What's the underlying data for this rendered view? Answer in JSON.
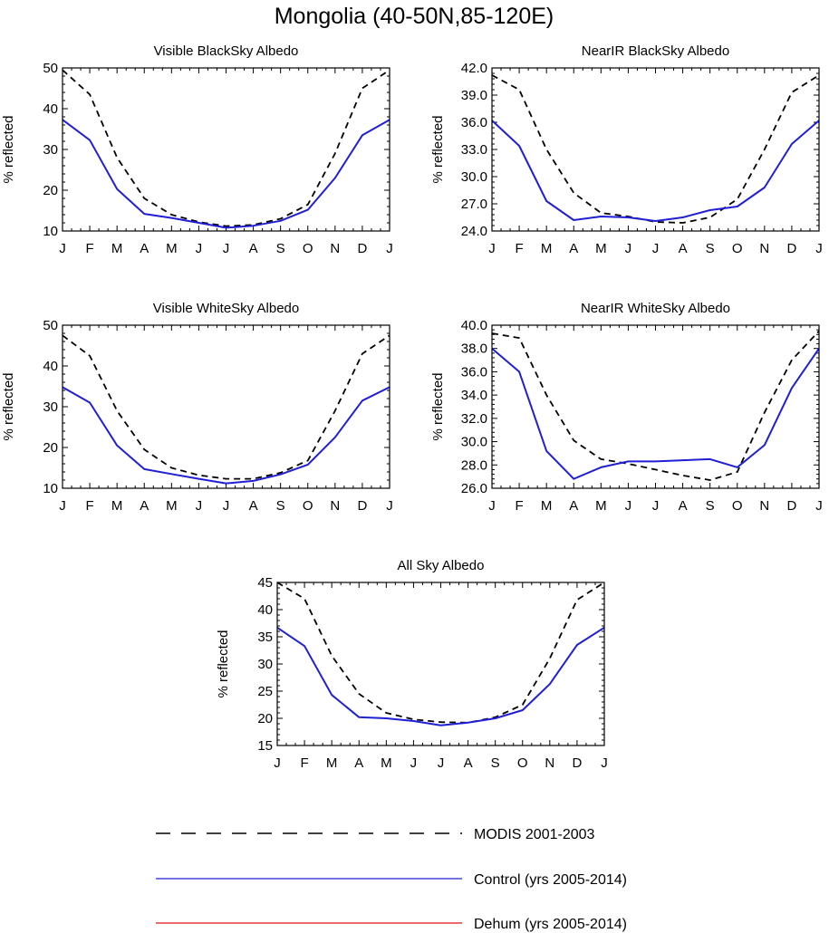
{
  "title": "Mongolia (40-50N,85-120E)",
  "legend": [
    {
      "label": "MODIS 2001-2003",
      "color": "#000000",
      "dash": "dashed"
    },
    {
      "label": "Control (yrs 2005-2014)",
      "color": "#1f1fd6",
      "dash": "solid"
    },
    {
      "label": "Dehum (yrs 2005-2014)",
      "color": "#e01010",
      "dash": "solid"
    }
  ],
  "chart_data": [
    {
      "type": "line",
      "title": "Visible BlackSky Albedo",
      "ylabel": "% reflected",
      "xlabel": "",
      "categories": [
        "J",
        "F",
        "M",
        "A",
        "M",
        "J",
        "J",
        "A",
        "S",
        "O",
        "N",
        "D",
        "J"
      ],
      "ylim": [
        10,
        50
      ],
      "yticks": [
        "10",
        "20",
        "30",
        "40",
        "50"
      ],
      "series": [
        {
          "name": "MODIS 2001-2003",
          "values": [
            49.5,
            43.5,
            28,
            18,
            14,
            12.2,
            11.2,
            11.5,
            13,
            16.5,
            29,
            45,
            49.5
          ]
        },
        {
          "name": "Control (yrs 2005-2014)",
          "values": [
            37.3,
            32.3,
            20.3,
            14.2,
            13.2,
            12,
            10.8,
            11.3,
            12.5,
            15.2,
            23,
            33.5,
            37.3
          ]
        }
      ]
    },
    {
      "type": "line",
      "title": "NearIR BlackSky Albedo",
      "ylabel": "% reflected",
      "xlabel": "",
      "categories": [
        "J",
        "F",
        "M",
        "A",
        "M",
        "J",
        "J",
        "A",
        "S",
        "O",
        "N",
        "D",
        "J"
      ],
      "ylim": [
        24,
        42
      ],
      "yticks": [
        "24.0",
        "27.0",
        "30.0",
        "33.0",
        "36.0",
        "39.0",
        "42.0"
      ],
      "series": [
        {
          "name": "MODIS 2001-2003",
          "values": [
            41.2,
            39.6,
            33,
            28.2,
            26,
            25.6,
            25,
            24.9,
            25.5,
            27.5,
            33,
            39.3,
            41.2
          ]
        },
        {
          "name": "Control (yrs 2005-2014)",
          "values": [
            36.2,
            33.4,
            27.3,
            25.2,
            25.6,
            25.5,
            25.1,
            25.5,
            26.3,
            26.7,
            28.8,
            33.6,
            36.2
          ]
        }
      ]
    },
    {
      "type": "line",
      "title": "Visible WhiteSky Albedo",
      "ylabel": "% reflected",
      "xlabel": "",
      "categories": [
        "J",
        "F",
        "M",
        "A",
        "M",
        "J",
        "J",
        "A",
        "S",
        "O",
        "N",
        "D",
        "J"
      ],
      "ylim": [
        10,
        50
      ],
      "yticks": [
        "10",
        "20",
        "30",
        "40",
        "50"
      ],
      "series": [
        {
          "name": "MODIS 2001-2003",
          "values": [
            47.5,
            42.5,
            29,
            19.5,
            15,
            13.2,
            12.3,
            12.3,
            13.8,
            16.8,
            29,
            43,
            47.5
          ]
        },
        {
          "name": "Control (yrs 2005-2014)",
          "values": [
            34.8,
            31,
            20.5,
            14.7,
            13.5,
            12.3,
            11.2,
            11.8,
            13.4,
            15.8,
            22.5,
            31.5,
            34.8
          ]
        }
      ]
    },
    {
      "type": "line",
      "title": "NearIR WhiteSky Albedo",
      "ylabel": "% reflected",
      "xlabel": "",
      "categories": [
        "J",
        "F",
        "M",
        "A",
        "M",
        "J",
        "J",
        "A",
        "S",
        "O",
        "N",
        "D",
        "J"
      ],
      "ylim": [
        26,
        40
      ],
      "yticks": [
        "26.0",
        "28.0",
        "30.0",
        "32.0",
        "34.0",
        "36.0",
        "38.0",
        "40.0"
      ],
      "series": [
        {
          "name": "MODIS 2001-2003",
          "values": [
            39.3,
            38.9,
            34,
            30.1,
            28.5,
            28.1,
            27.6,
            27.1,
            26.7,
            27.4,
            32.5,
            37,
            39.5
          ]
        },
        {
          "name": "Control (yrs 2005-2014)",
          "values": [
            38,
            36,
            29.2,
            26.8,
            27.8,
            28.3,
            28.3,
            28.4,
            28.5,
            27.8,
            29.7,
            34.6,
            38
          ]
        }
      ]
    },
    {
      "type": "line",
      "title": "All Sky Albedo",
      "ylabel": "% reflected",
      "xlabel": "",
      "categories": [
        "J",
        "F",
        "M",
        "A",
        "M",
        "J",
        "J",
        "A",
        "S",
        "O",
        "N",
        "D",
        "J"
      ],
      "ylim": [
        15,
        45
      ],
      "yticks": [
        "15",
        "20",
        "25",
        "30",
        "35",
        "40",
        "45"
      ],
      "series": [
        {
          "name": "MODIS 2001-2003",
          "values": [
            45,
            42,
            31.5,
            24.5,
            21,
            19.8,
            19.3,
            19.2,
            20.2,
            22.5,
            31,
            41.8,
            45
          ]
        },
        {
          "name": "Control (yrs 2005-2014)",
          "values": [
            36.7,
            33.3,
            24.3,
            20.2,
            20,
            19.5,
            18.7,
            19.2,
            20,
            21.5,
            26.3,
            33.5,
            36.7
          ]
        }
      ]
    }
  ]
}
